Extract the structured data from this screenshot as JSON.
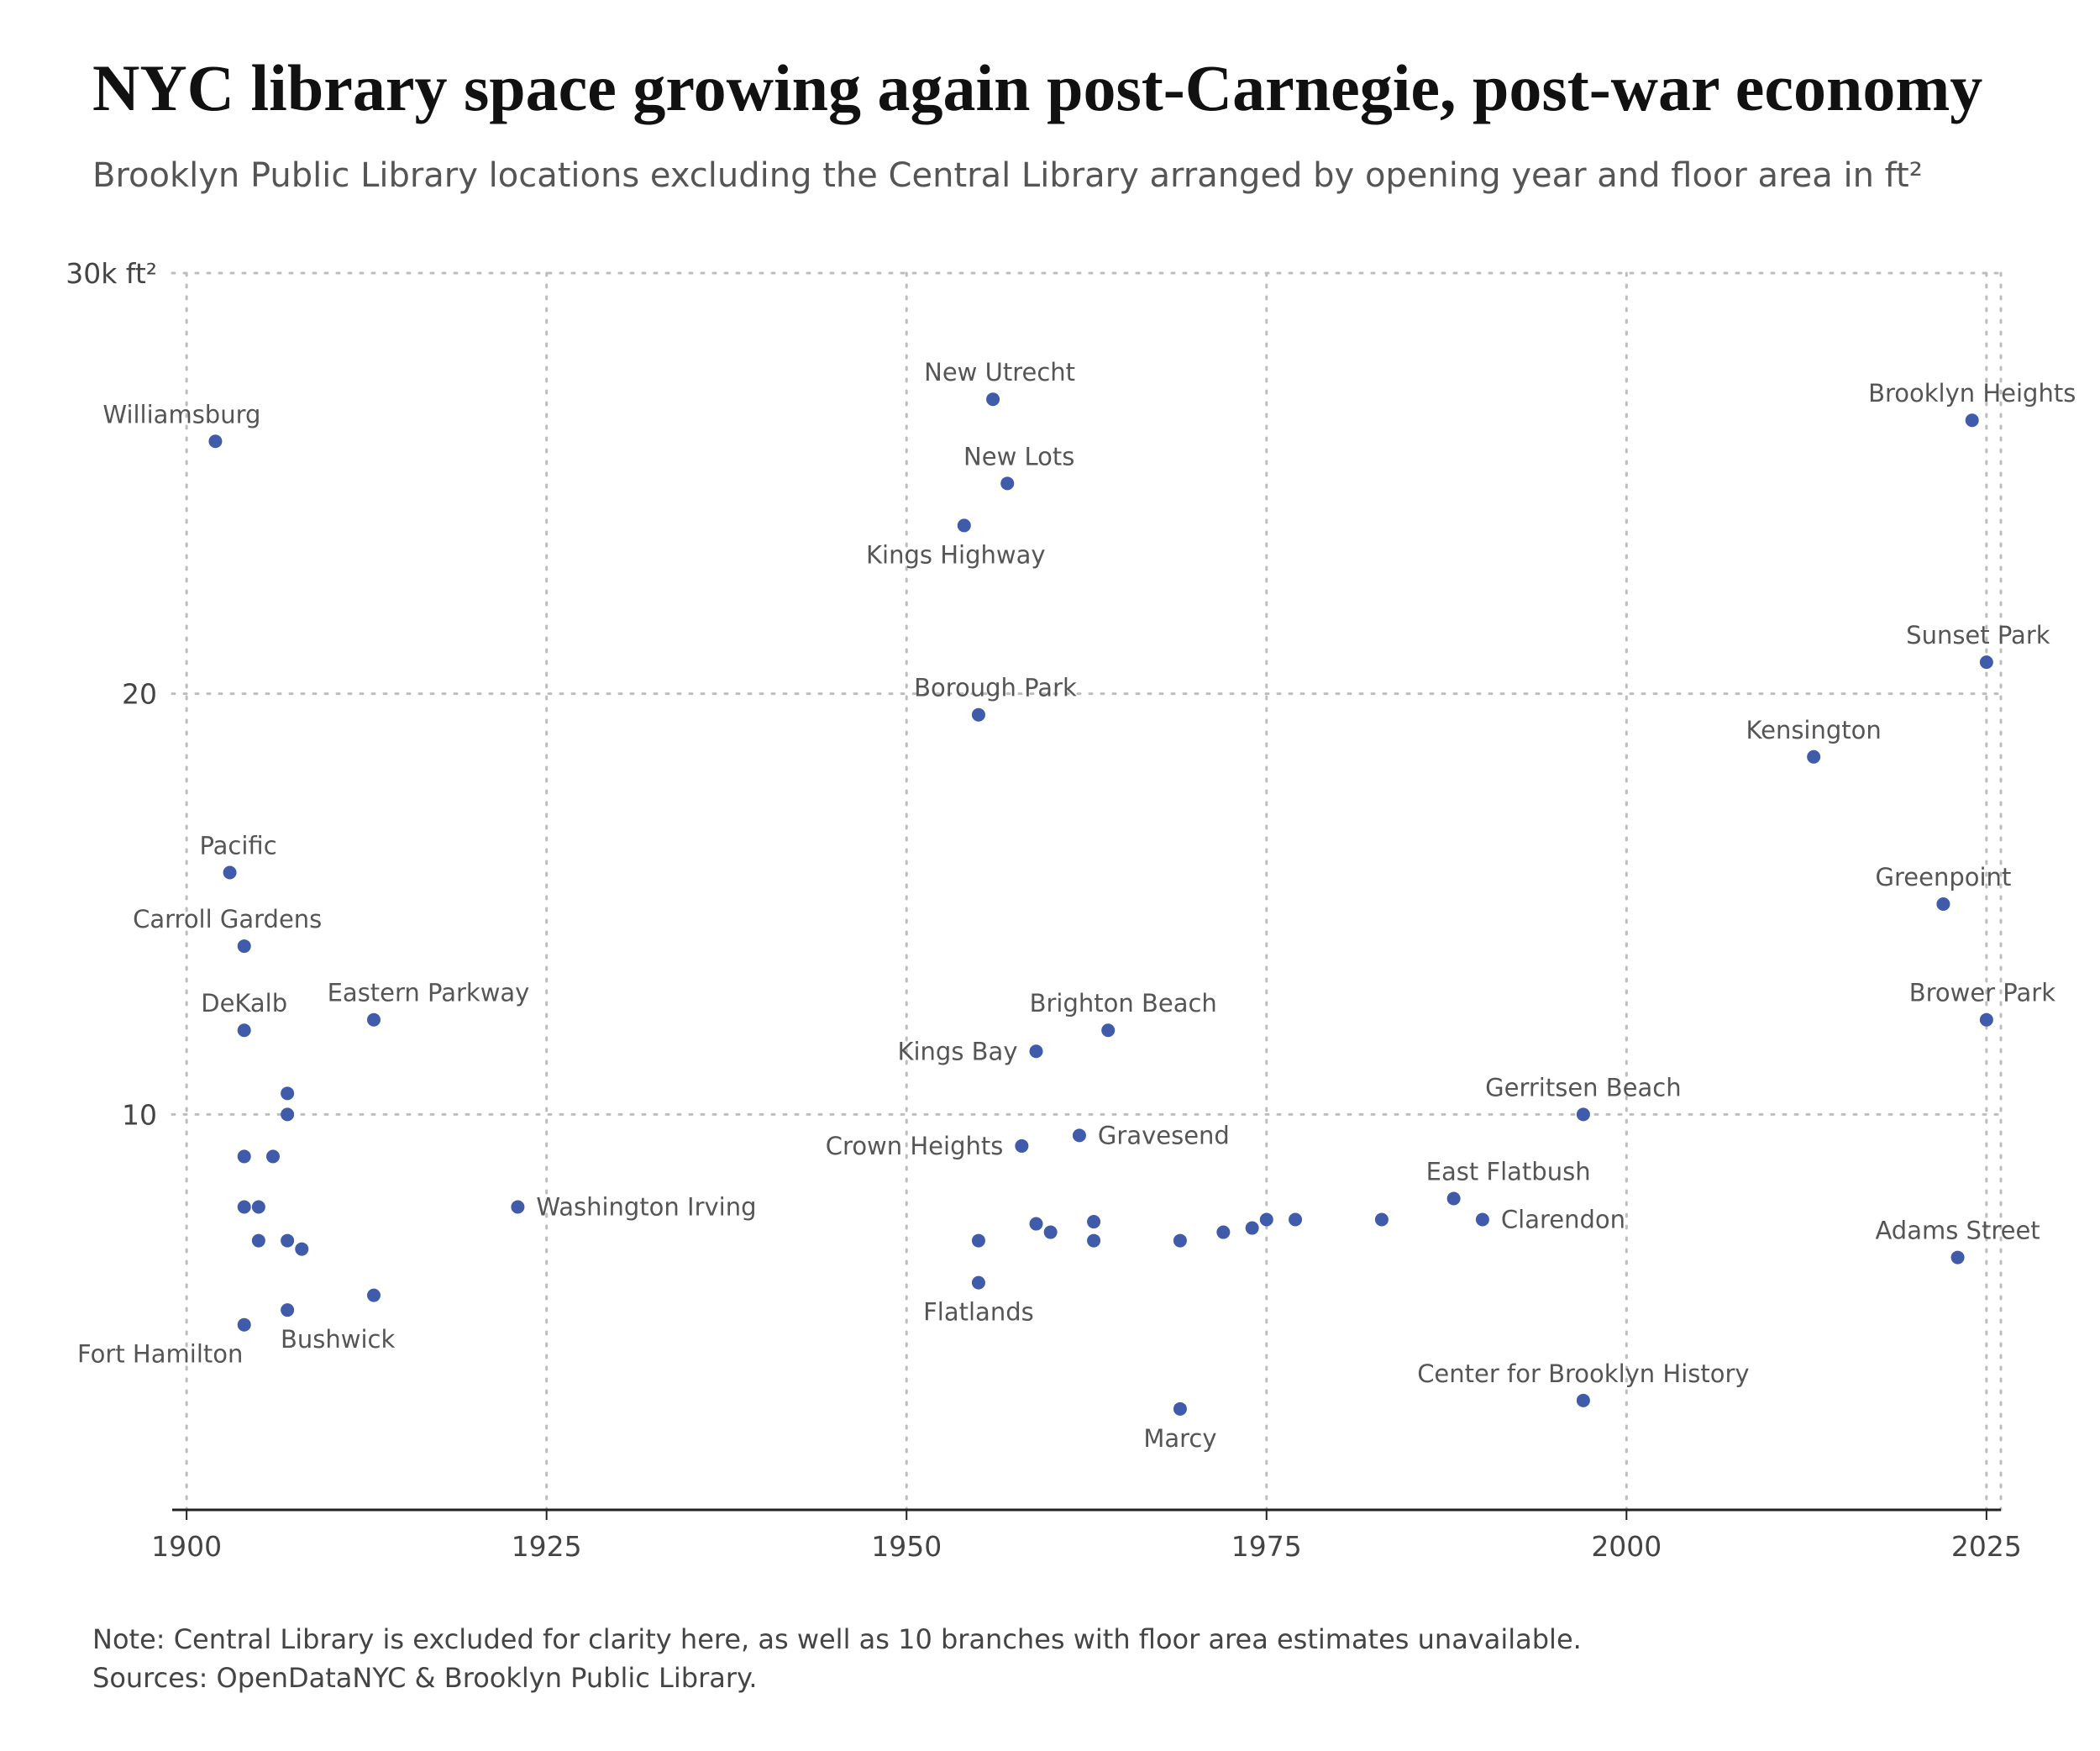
{
  "title": "NYC library space growing again post-Carnegie, post-war economy",
  "subtitle": "Brooklyn Public Library locations excluding the Central Library arranged by opening year and floor area in ft²",
  "note": {
    "line1": "Note: Central Library is excluded for clarity here, as well as 10 branches with floor area estimates unavailable.",
    "line2": "Sources: OpenDataNYC & Brooklyn Public Library."
  },
  "colors": {
    "point": "#3f5ba9",
    "grid": "#bdbdbd",
    "axis": "#222222"
  },
  "chart_data": {
    "type": "scatter",
    "xlim": [
      1899,
      2026
    ],
    "ylim": [
      0.6,
      30
    ],
    "x_ticks": [
      {
        "value": 1900,
        "label": "1900"
      },
      {
        "value": 1925,
        "label": "1925"
      },
      {
        "value": 1950,
        "label": "1950"
      },
      {
        "value": 1975,
        "label": "1975"
      },
      {
        "value": 2000,
        "label": "2000"
      },
      {
        "value": 2025,
        "label": "2025"
      }
    ],
    "y_ticks": [
      {
        "value": 10,
        "label": "10"
      },
      {
        "value": 20,
        "label": "20"
      },
      {
        "value": 30,
        "label": "30k ft²"
      }
    ],
    "grid": true,
    "points": [
      {
        "x": 1902,
        "y": 26.0,
        "label": "Williamsburg",
        "pos": "above",
        "dx": -40
      },
      {
        "x": 1903,
        "y": 15.75,
        "label": "Pacific",
        "pos": "above",
        "dx": 10
      },
      {
        "x": 1904,
        "y": 14.0,
        "label": "Carroll Gardens",
        "pos": "above",
        "dx": -20
      },
      {
        "x": 1904,
        "y": 12.0,
        "label": "DeKalb",
        "pos": "above",
        "dx": 0
      },
      {
        "x": 1907,
        "y": 10.5
      },
      {
        "x": 1907,
        "y": 10.0
      },
      {
        "x": 1904,
        "y": 9.0
      },
      {
        "x": 1906,
        "y": 9.0
      },
      {
        "x": 1904,
        "y": 7.8
      },
      {
        "x": 1905,
        "y": 7.8
      },
      {
        "x": 1905,
        "y": 7.0
      },
      {
        "x": 1907,
        "y": 7.0
      },
      {
        "x": 1908,
        "y": 6.8
      },
      {
        "x": 1907,
        "y": 5.35,
        "label": "Bushwick",
        "pos": "below",
        "dx": 60
      },
      {
        "x": 1904,
        "y": 5.0,
        "label": "Fort Hamilton",
        "pos": "below",
        "dx": -100
      },
      {
        "x": 1913,
        "y": 12.25,
        "label": "Eastern Parkway",
        "pos": "above",
        "dx": 65
      },
      {
        "x": 1913,
        "y": 5.7
      },
      {
        "x": 1923,
        "y": 7.8,
        "label": "Washington Irving",
        "pos": "right",
        "dx": 0
      },
      {
        "x": 1956,
        "y": 27.0,
        "label": "New Utrecht",
        "pos": "above",
        "dx": 8
      },
      {
        "x": 1957,
        "y": 25.0,
        "label": "New Lots",
        "pos": "above",
        "dx": 14
      },
      {
        "x": 1954,
        "y": 24.0,
        "label": "Kings Highway",
        "pos": "below",
        "dx": -10
      },
      {
        "x": 1955,
        "y": 19.5,
        "label": "Borough Park",
        "pos": "above",
        "dx": 20
      },
      {
        "x": 1964,
        "y": 12.0,
        "label": "Brighton Beach",
        "pos": "above",
        "dx": 18
      },
      {
        "x": 1959,
        "y": 11.5,
        "label": "Kings Bay",
        "pos": "left",
        "dx": 0
      },
      {
        "x": 1962,
        "y": 9.5,
        "label": "Gravesend",
        "pos": "right",
        "dx": 0
      },
      {
        "x": 1958,
        "y": 9.25,
        "label": "Crown Heights",
        "pos": "left",
        "dx": 0
      },
      {
        "x": 1959,
        "y": 7.4
      },
      {
        "x": 1960,
        "y": 7.2
      },
      {
        "x": 1963,
        "y": 7.45
      },
      {
        "x": 1963,
        "y": 7.0
      },
      {
        "x": 1955,
        "y": 7.0
      },
      {
        "x": 1955,
        "y": 6.0,
        "label": "Flatlands",
        "pos": "below",
        "dx": 0
      },
      {
        "x": 1969,
        "y": 7.0
      },
      {
        "x": 1969,
        "y": 3.0,
        "label": "Marcy",
        "pos": "below",
        "dx": 0
      },
      {
        "x": 1972,
        "y": 7.2
      },
      {
        "x": 1974,
        "y": 7.3
      },
      {
        "x": 1975,
        "y": 7.5
      },
      {
        "x": 1977,
        "y": 7.5
      },
      {
        "x": 1983,
        "y": 7.5
      },
      {
        "x": 1988,
        "y": 8.0,
        "label": "East Flatbush",
        "pos": "above",
        "dx": 65
      },
      {
        "x": 1990,
        "y": 7.5,
        "label": "Clarendon",
        "pos": "right",
        "dx": 0
      },
      {
        "x": 1997,
        "y": 10.0,
        "label": "Gerritsen Beach",
        "pos": "above",
        "dx": 0
      },
      {
        "x": 1997,
        "y": 3.2,
        "label": "Center for Brooklyn History",
        "pos": "above",
        "dx": 0
      },
      {
        "x": 2013,
        "y": 18.5,
        "label": "Kensington",
        "pos": "above",
        "dx": 0
      },
      {
        "x": 2022,
        "y": 15.0,
        "label": "Greenpoint",
        "pos": "above",
        "dx": 0
      },
      {
        "x": 2024,
        "y": 26.5,
        "label": "Brooklyn Heights",
        "pos": "above",
        "dx": 0
      },
      {
        "x": 2025,
        "y": 20.75,
        "label": "Sunset Park",
        "pos": "above",
        "dx": -10
      },
      {
        "x": 2025,
        "y": 12.25,
        "label": "Brower Park",
        "pos": "above",
        "dx": -5
      },
      {
        "x": 2023,
        "y": 6.6,
        "label": "Adams Street",
        "pos": "above",
        "dx": 0
      }
    ]
  }
}
